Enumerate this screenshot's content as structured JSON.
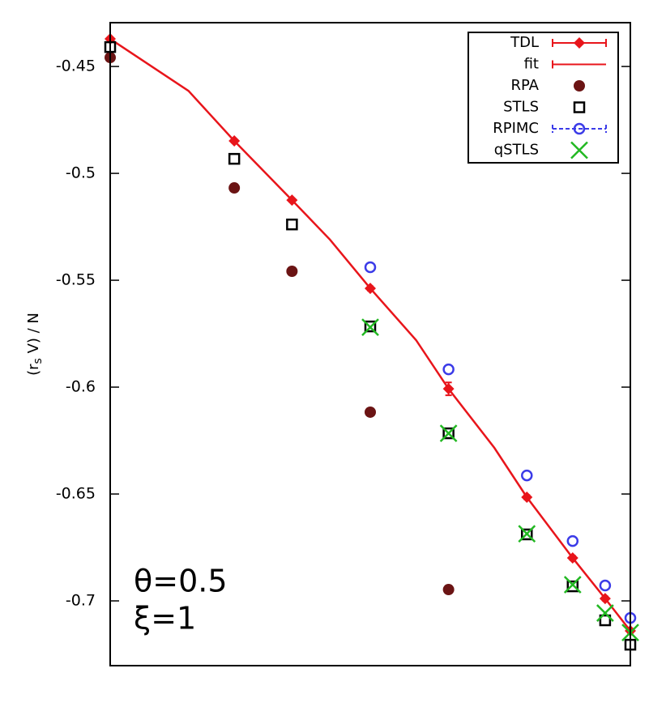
{
  "chart_data": {
    "type": "scatter",
    "ylabel": {
      "main": "(r",
      "sub": "s",
      "rest": " V) / N"
    },
    "annotations": [
      "θ=0.5",
      "ξ=1"
    ],
    "xlog": true,
    "xlim": [
      0.1,
      10
    ],
    "ylim": [
      -0.7303,
      -0.4295
    ],
    "yticks": [
      -0.45,
      -0.5,
      -0.55,
      -0.6,
      -0.65,
      -0.7
    ],
    "legend": "top-right",
    "series": [
      {
        "name": "TDL",
        "color": "#e8151b",
        "marker": "diamond",
        "line": false,
        "errorbars": true,
        "x": [
          0.1,
          0.3,
          0.5,
          1,
          2,
          4,
          6,
          8,
          10
        ],
        "values": [
          -0.4371,
          -0.4848,
          -0.5125,
          -0.5538,
          -0.6008,
          -0.6515,
          -0.6799,
          -0.6989,
          -0.714
        ],
        "errors": [
          0.0008,
          0.0008,
          0.0008,
          0.001,
          0.003,
          0.001,
          0.001,
          0.001,
          0.001
        ]
      },
      {
        "name": "fit",
        "color": "#e8151b",
        "marker": "none",
        "line": true,
        "x": [
          0.1,
          0.2,
          0.3,
          0.5,
          0.7,
          1,
          1.5,
          2,
          3,
          4,
          6,
          8,
          10
        ],
        "values": [
          -0.4371,
          -0.4614,
          -0.4848,
          -0.5125,
          -0.531,
          -0.5538,
          -0.578,
          -0.6008,
          -0.6284,
          -0.6515,
          -0.6799,
          -0.6989,
          -0.714
        ]
      },
      {
        "name": "RPA",
        "color": "#6b1414",
        "marker": "circle",
        "line": false,
        "x": [
          0.1,
          0.3,
          0.5,
          1,
          2
        ],
        "values": [
          -0.4458,
          -0.5068,
          -0.5458,
          -0.6117,
          -0.6947
        ]
      },
      {
        "name": "STLS",
        "color": "#000000",
        "marker": "square",
        "line": false,
        "x": [
          0.1,
          0.3,
          0.5,
          1,
          2,
          4,
          6,
          8,
          10
        ],
        "values": [
          -0.4409,
          -0.4932,
          -0.5239,
          -0.5716,
          -0.6216,
          -0.6689,
          -0.6932,
          -0.7091,
          -0.7205
        ]
      },
      {
        "name": "RPIMC",
        "color": "#3b3be8",
        "marker": "ocircle",
        "line": false,
        "legend_dashed": true,
        "x": [
          1,
          2,
          4,
          6,
          8,
          10
        ],
        "values": [
          -0.5439,
          -0.5917,
          -0.6413,
          -0.672,
          -0.6928,
          -0.708
        ]
      },
      {
        "name": "qSTLS",
        "color": "#22b822",
        "marker": "cross",
        "line": false,
        "x": [
          1,
          2,
          4,
          6,
          8,
          10
        ],
        "values": [
          -0.572,
          -0.6216,
          -0.6686,
          -0.6924,
          -0.7057,
          -0.7148
        ]
      }
    ]
  }
}
